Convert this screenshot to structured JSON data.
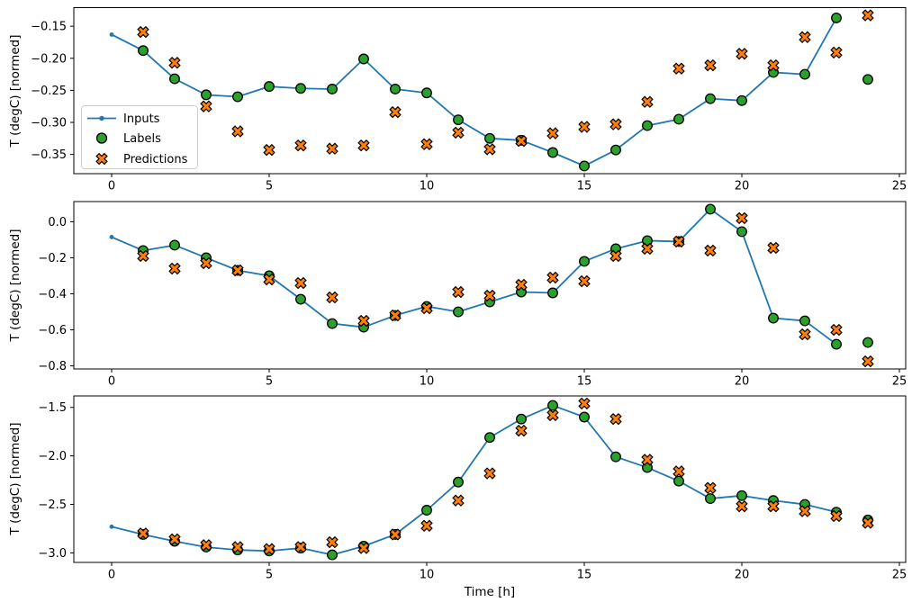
{
  "figure": {
    "background": "#ffffff",
    "colors": {
      "inputs_line": "#1f77b4",
      "labels_marker": "#2ca02c",
      "predictions_marker": "#ff7f0e",
      "marker_edge": "#000000",
      "axes": "#000000",
      "legend_border": "#cccccc",
      "legend_bg": "#ffffff"
    },
    "legend": {
      "items": [
        {
          "name": "inputs",
          "label": "Inputs"
        },
        {
          "name": "labels",
          "label": "Labels"
        },
        {
          "name": "predictions",
          "label": "Predictions"
        }
      ]
    }
  },
  "chart_data": [
    {
      "type": "line",
      "title": "",
      "ylabel": "T (degC) [normed]",
      "xlabel": "",
      "xlim": [
        -1.2,
        25.2
      ],
      "ylim": [
        -0.38,
        -0.121
      ],
      "xticks": [
        0,
        5,
        10,
        15,
        20,
        25
      ],
      "xtick_labels": [
        "0",
        "5",
        "10",
        "15",
        "20",
        "25"
      ],
      "yticks": [
        -0.15,
        -0.2,
        -0.25,
        -0.3,
        -0.35
      ],
      "ytick_labels": [
        "−0.15",
        "−0.20",
        "−0.25",
        "−0.30",
        "−0.35"
      ],
      "grid": false,
      "legend_position": "upper-left-inside",
      "series": [
        {
          "name": "Inputs",
          "style": "line-dot",
          "x": [
            0,
            1,
            2,
            3,
            4,
            5,
            6,
            7,
            8,
            9,
            10,
            11,
            12,
            13,
            14,
            15,
            16,
            17,
            18,
            19,
            20,
            21,
            22,
            23
          ],
          "values": [
            -0.163,
            -0.188,
            -0.232,
            -0.257,
            -0.26,
            -0.244,
            -0.247,
            -0.248,
            -0.201,
            -0.248,
            -0.254,
            -0.296,
            -0.325,
            -0.328,
            -0.347,
            -0.368,
            -0.343,
            -0.305,
            -0.295,
            -0.263,
            -0.266,
            -0.222,
            -0.225,
            -0.137
          ]
        },
        {
          "name": "Labels",
          "style": "scatter-circle",
          "x": [
            1,
            2,
            3,
            4,
            5,
            6,
            7,
            8,
            9,
            10,
            11,
            12,
            13,
            14,
            15,
            16,
            17,
            18,
            19,
            20,
            21,
            22,
            23,
            24
          ],
          "values": [
            -0.188,
            -0.232,
            -0.257,
            -0.26,
            -0.244,
            -0.247,
            -0.248,
            -0.201,
            -0.248,
            -0.254,
            -0.296,
            -0.325,
            -0.328,
            -0.347,
            -0.368,
            -0.343,
            -0.305,
            -0.295,
            -0.263,
            -0.266,
            -0.222,
            -0.225,
            -0.137,
            -0.233
          ]
        },
        {
          "name": "Predictions",
          "style": "scatter-x",
          "x": [
            1,
            2,
            3,
            4,
            5,
            6,
            7,
            8,
            9,
            10,
            11,
            12,
            13,
            14,
            15,
            16,
            17,
            18,
            19,
            20,
            21,
            22,
            23,
            24
          ],
          "values": [
            -0.159,
            -0.207,
            -0.275,
            -0.314,
            -0.343,
            -0.336,
            -0.341,
            -0.336,
            -0.284,
            -0.334,
            -0.316,
            -0.342,
            -0.329,
            -0.317,
            -0.307,
            -0.303,
            -0.268,
            -0.216,
            -0.211,
            -0.193,
            -0.211,
            -0.167,
            -0.191,
            -0.133
          ]
        }
      ]
    },
    {
      "type": "line",
      "title": "",
      "ylabel": "T (degC) [normed]",
      "xlabel": "",
      "xlim": [
        -1.2,
        25.2
      ],
      "ylim": [
        -0.817,
        0.112
      ],
      "xticks": [
        0,
        5,
        10,
        15,
        20,
        25
      ],
      "xtick_labels": [
        "0",
        "5",
        "10",
        "15",
        "20",
        "25"
      ],
      "yticks": [
        0.0,
        -0.2,
        -0.4,
        -0.6,
        -0.8
      ],
      "ytick_labels": [
        "0.0",
        "−0.2",
        "−0.4",
        "−0.6",
        "−0.8"
      ],
      "grid": false,
      "series": [
        {
          "name": "Inputs",
          "style": "line-dot",
          "x": [
            0,
            1,
            2,
            3,
            4,
            5,
            6,
            7,
            8,
            9,
            10,
            11,
            12,
            13,
            14,
            15,
            16,
            17,
            18,
            19,
            20,
            21,
            22,
            23
          ],
          "values": [
            -0.085,
            -0.16,
            -0.13,
            -0.2,
            -0.27,
            -0.3,
            -0.43,
            -0.565,
            -0.585,
            -0.52,
            -0.47,
            -0.5,
            -0.445,
            -0.39,
            -0.395,
            -0.22,
            -0.15,
            -0.105,
            -0.11,
            0.07,
            -0.055,
            -0.535,
            -0.55,
            -0.68
          ]
        },
        {
          "name": "Labels",
          "style": "scatter-circle",
          "x": [
            1,
            2,
            3,
            4,
            5,
            6,
            7,
            8,
            9,
            10,
            11,
            12,
            13,
            14,
            15,
            16,
            17,
            18,
            19,
            20,
            21,
            22,
            23,
            24
          ],
          "values": [
            -0.16,
            -0.13,
            -0.2,
            -0.27,
            -0.3,
            -0.43,
            -0.565,
            -0.585,
            -0.52,
            -0.47,
            -0.5,
            -0.445,
            -0.39,
            -0.395,
            -0.22,
            -0.15,
            -0.105,
            -0.11,
            0.07,
            -0.055,
            -0.535,
            -0.55,
            -0.68,
            -0.67
          ]
        },
        {
          "name": "Predictions",
          "style": "scatter-x",
          "x": [
            1,
            2,
            3,
            4,
            5,
            6,
            7,
            8,
            9,
            10,
            11,
            12,
            13,
            14,
            15,
            16,
            17,
            18,
            19,
            20,
            21,
            22,
            23,
            24
          ],
          "values": [
            -0.19,
            -0.26,
            -0.23,
            -0.27,
            -0.32,
            -0.34,
            -0.42,
            -0.55,
            -0.52,
            -0.48,
            -0.39,
            -0.41,
            -0.35,
            -0.31,
            -0.33,
            -0.19,
            -0.15,
            -0.11,
            -0.16,
            0.02,
            -0.145,
            -0.625,
            -0.6,
            -0.775
          ]
        }
      ]
    },
    {
      "type": "line",
      "title": "",
      "ylabel": "T (degC) [normed]",
      "xlabel": "Time [h]",
      "xlim": [
        -1.2,
        25.2
      ],
      "ylim": [
        -3.098,
        -1.382
      ],
      "xticks": [
        0,
        5,
        10,
        15,
        20,
        25
      ],
      "xtick_labels": [
        "0",
        "5",
        "10",
        "15",
        "20",
        "25"
      ],
      "yticks": [
        -1.5,
        -2.0,
        -2.5,
        -3.0
      ],
      "ytick_labels": [
        "−1.5",
        "−2.0",
        "−2.5",
        "−3.0"
      ],
      "grid": false,
      "series": [
        {
          "name": "Inputs",
          "style": "line-dot",
          "x": [
            0,
            1,
            2,
            3,
            4,
            5,
            6,
            7,
            8,
            9,
            10,
            11,
            12,
            13,
            14,
            15,
            16,
            17,
            18,
            19,
            20,
            21,
            22,
            23
          ],
          "values": [
            -2.73,
            -2.81,
            -2.88,
            -2.94,
            -2.97,
            -2.98,
            -2.95,
            -3.02,
            -2.93,
            -2.81,
            -2.56,
            -2.27,
            -1.81,
            -1.62,
            -1.48,
            -1.6,
            -2.01,
            -2.12,
            -2.26,
            -2.44,
            -2.41,
            -2.46,
            -2.5,
            -2.58
          ]
        },
        {
          "name": "Labels",
          "style": "scatter-circle",
          "x": [
            1,
            2,
            3,
            4,
            5,
            6,
            7,
            8,
            9,
            10,
            11,
            12,
            13,
            14,
            15,
            16,
            17,
            18,
            19,
            20,
            21,
            22,
            23,
            24
          ],
          "values": [
            -2.81,
            -2.88,
            -2.94,
            -2.97,
            -2.98,
            -2.95,
            -3.02,
            -2.93,
            -2.81,
            -2.56,
            -2.27,
            -1.81,
            -1.62,
            -1.48,
            -1.6,
            -2.01,
            -2.12,
            -2.26,
            -2.44,
            -2.41,
            -2.46,
            -2.5,
            -2.58,
            -2.66
          ]
        },
        {
          "name": "Predictions",
          "style": "scatter-x",
          "x": [
            1,
            2,
            3,
            4,
            5,
            6,
            7,
            8,
            9,
            10,
            11,
            12,
            13,
            14,
            15,
            16,
            17,
            18,
            19,
            20,
            21,
            22,
            23,
            24
          ],
          "values": [
            -2.8,
            -2.86,
            -2.92,
            -2.94,
            -2.96,
            -2.94,
            -2.89,
            -2.95,
            -2.81,
            -2.72,
            -2.46,
            -2.18,
            -1.74,
            -1.58,
            -1.46,
            -1.62,
            -2.04,
            -2.16,
            -2.33,
            -2.52,
            -2.52,
            -2.57,
            -2.62,
            -2.69
          ]
        }
      ]
    }
  ]
}
